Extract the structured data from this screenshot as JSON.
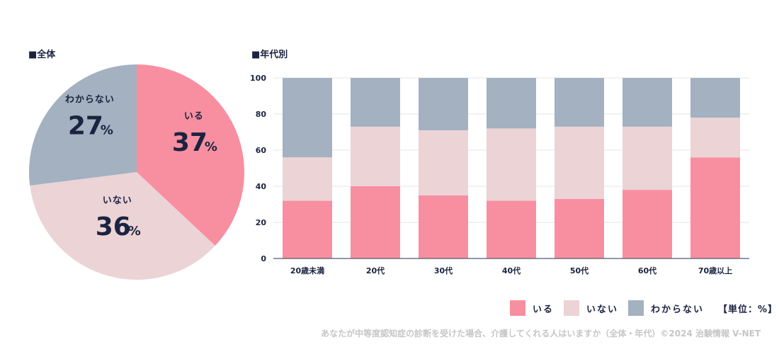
{
  "pie_title": "■全体",
  "bar_title": "■年代別",
  "unit_label": "【単位：%】",
  "caption": "あなたが中等度認知症の診断を受けた場合、介護してくれる人はいますか（全体・年代）©2024 治験情報 V-NET",
  "colors": {
    "iru": "#f88fa0",
    "inai": "#ebd3d6",
    "wakaranai": "#a3b1c0",
    "text": "#1b2340",
    "grid": "#e4e4e4"
  },
  "chart_data": [
    {
      "type": "pie",
      "slices": [
        {
          "label": "いる",
          "value": 37,
          "display": "37"
        },
        {
          "label": "いない",
          "value": 36,
          "display": "36"
        },
        {
          "label": "わからない",
          "value": 27,
          "display": "27"
        }
      ],
      "percent_sign": "%"
    },
    {
      "type": "bar",
      "stacked": true,
      "categories": [
        "20歳未満",
        "20代",
        "30代",
        "40代",
        "50代",
        "60代",
        "70歳以上"
      ],
      "series": [
        {
          "name": "いる",
          "values": [
            32,
            40,
            35,
            32,
            33,
            38,
            56
          ]
        },
        {
          "name": "いない",
          "values": [
            24,
            33,
            36,
            40,
            40,
            35,
            22
          ]
        },
        {
          "name": "わからない",
          "values": [
            44,
            27,
            29,
            28,
            27,
            27,
            22
          ]
        }
      ],
      "ylim": [
        0,
        100
      ],
      "yticks": [
        0,
        20,
        40,
        60,
        80,
        100
      ],
      "grid": true,
      "legend_position": "bottom-right"
    }
  ]
}
